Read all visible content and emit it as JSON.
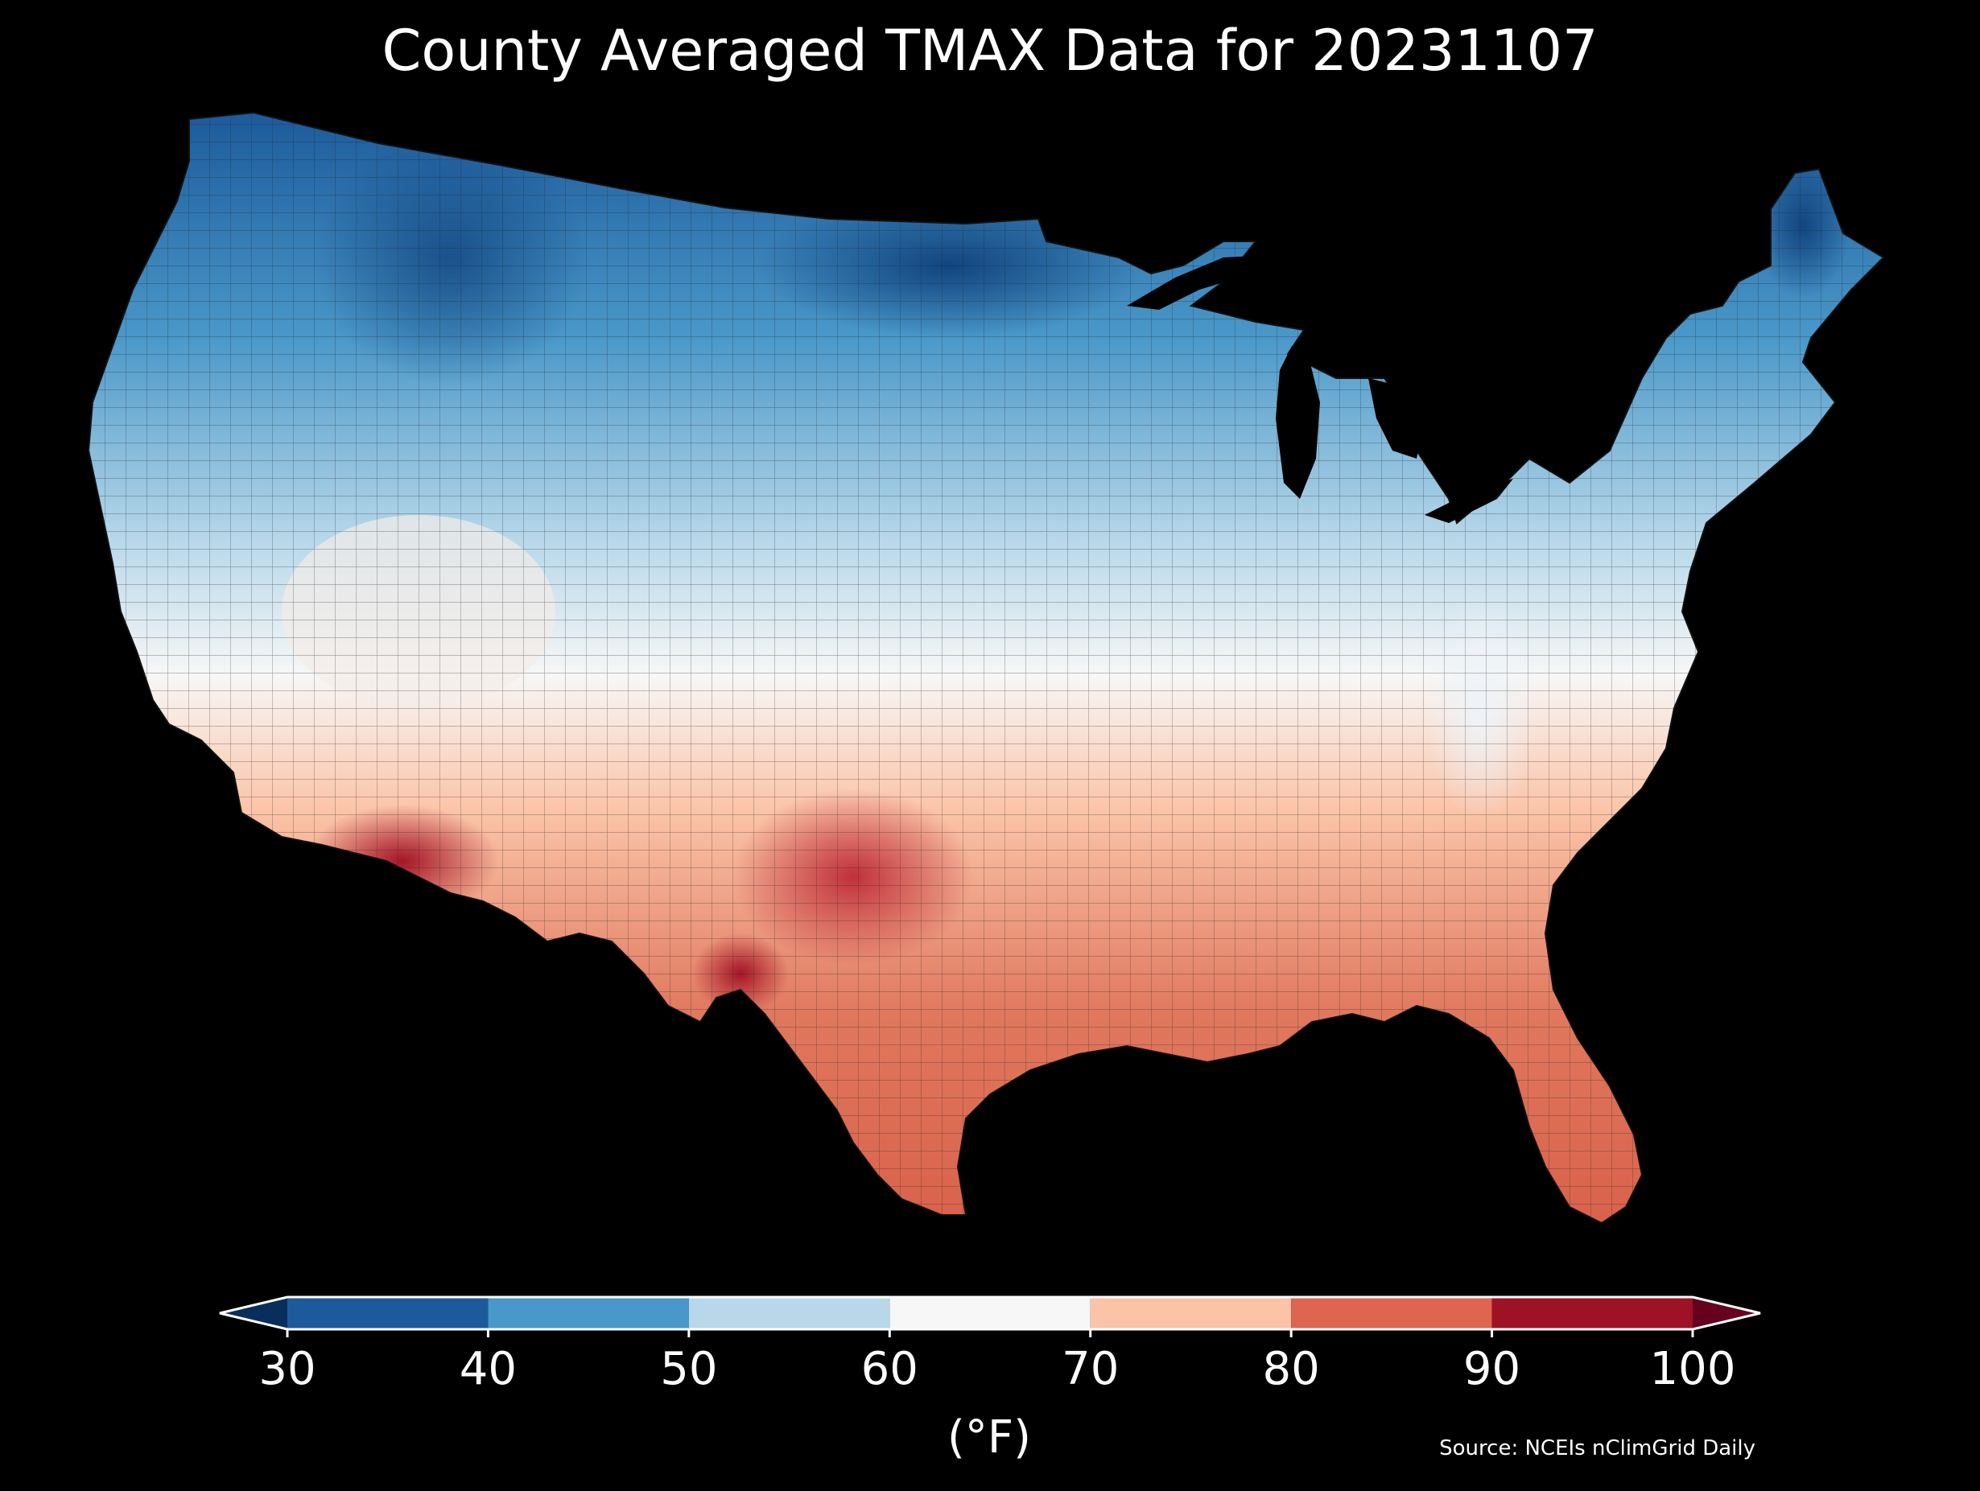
{
  "title": "County Averaged TMAX Data for 20231107",
  "colorbar": {
    "unit_label": "(°F)",
    "ticks": [
      "30",
      "40",
      "50",
      "60",
      "70",
      "80",
      "90",
      "100"
    ],
    "bins": [
      {
        "min": 30,
        "max": 40,
        "color": "#1c5a9b"
      },
      {
        "min": 40,
        "max": 50,
        "color": "#4a98c9"
      },
      {
        "min": 50,
        "max": 60,
        "color": "#b8d8ea"
      },
      {
        "min": 60,
        "max": 70,
        "color": "#f7f7f7"
      },
      {
        "min": 70,
        "max": 80,
        "color": "#fbc4a8"
      },
      {
        "min": 80,
        "max": 90,
        "color": "#dd6650"
      },
      {
        "min": 90,
        "max": 100,
        "color": "#9e1225"
      }
    ],
    "under_color": "#0a2e5c",
    "over_color": "#67001f",
    "extend": "both"
  },
  "source": "Source: NCEIs nClimGrid Daily",
  "map": {
    "region": "contiguous-united-states",
    "background": "#000000",
    "border_color": "#222222"
  }
}
